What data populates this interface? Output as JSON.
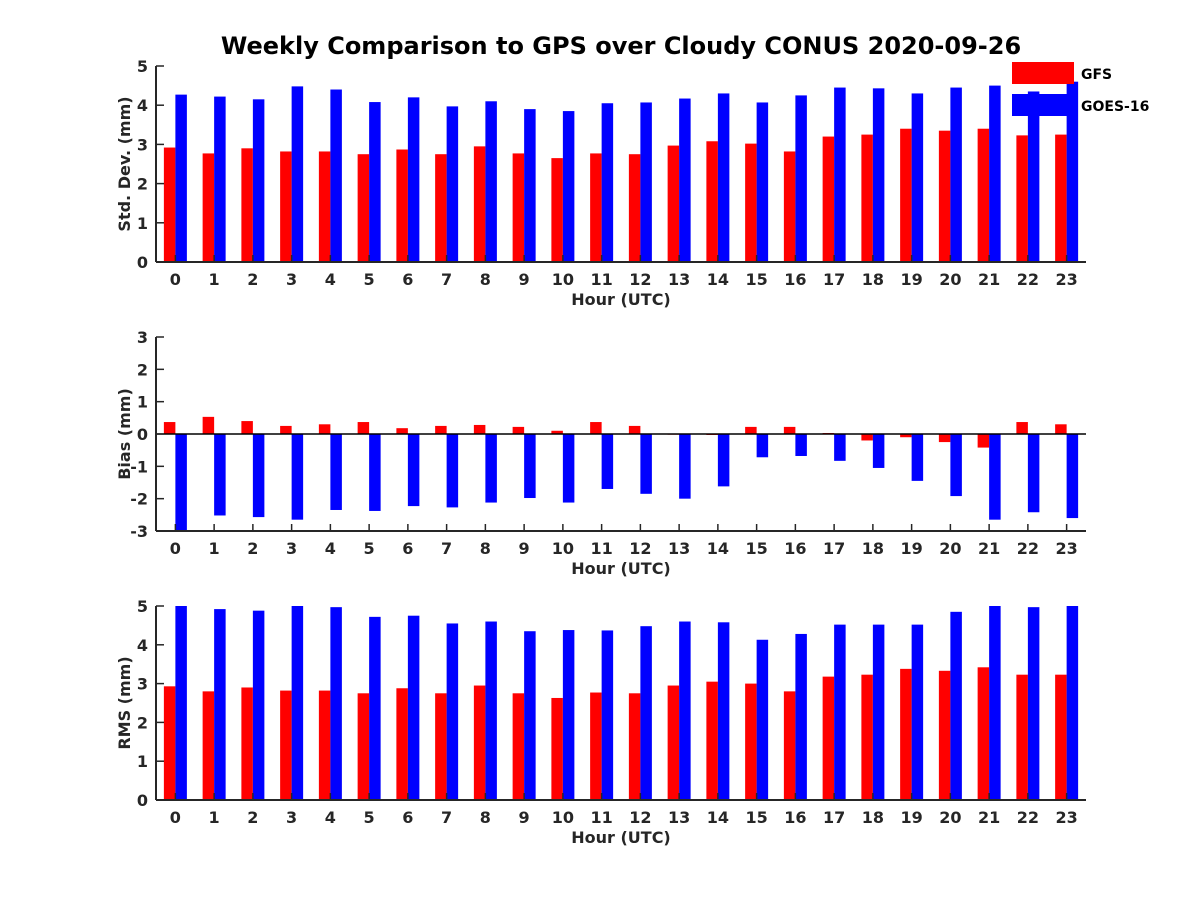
{
  "chart_data": {
    "type": "bar",
    "title": "Weekly Comparison to GPS over Cloudy CONUS 2020-09-26",
    "categories": [
      "0",
      "1",
      "2",
      "3",
      "4",
      "5",
      "6",
      "7",
      "8",
      "9",
      "10",
      "11",
      "12",
      "13",
      "14",
      "15",
      "16",
      "17",
      "18",
      "19",
      "20",
      "21",
      "22",
      "23"
    ],
    "legend": {
      "placement": "top-right",
      "entries": [
        {
          "name": "GFS",
          "color": "#ff0000"
        },
        {
          "name": "GOES-16",
          "color": "#0000ff"
        }
      ]
    },
    "panels": [
      {
        "ylabel": "Std. Dev. (mm)",
        "xlabel": "Hour (UTC)",
        "ylim": [
          0,
          5
        ],
        "yticks": [
          "0",
          "1",
          "2",
          "3",
          "4",
          "5"
        ],
        "series": [
          {
            "name": "GFS",
            "color": "#ff0000",
            "values": [
              2.92,
              2.77,
              2.9,
              2.82,
              2.82,
              2.75,
              2.87,
              2.75,
              2.95,
              2.77,
              2.65,
              2.77,
              2.75,
              2.97,
              3.08,
              3.02,
              2.82,
              3.2,
              3.25,
              3.4,
              3.35,
              3.4,
              3.23,
              3.25
            ]
          },
          {
            "name": "GOES-16",
            "color": "#0000ff",
            "values": [
              4.27,
              4.22,
              4.15,
              4.48,
              4.4,
              4.08,
              4.2,
              3.97,
              4.1,
              3.9,
              3.85,
              4.05,
              4.07,
              4.17,
              4.3,
              4.07,
              4.25,
              4.45,
              4.43,
              4.3,
              4.45,
              4.5,
              4.35,
              4.6
            ]
          }
        ]
      },
      {
        "ylabel": "Bias (mm)",
        "xlabel": "Hour (UTC)",
        "ylim": [
          -3,
          3
        ],
        "yticks": [
          "-3",
          "-2",
          "-1",
          "0",
          "1",
          "2",
          "3"
        ],
        "series": [
          {
            "name": "GFS",
            "color": "#ff0000",
            "values": [
              0.37,
              0.53,
              0.4,
              0.25,
              0.3,
              0.37,
              0.18,
              0.25,
              0.28,
              0.22,
              0.1,
              0.37,
              0.25,
              -0.02,
              -0.03,
              0.22,
              0.22,
              0.03,
              -0.2,
              -0.1,
              -0.25,
              -0.42,
              0.37,
              0.3
            ]
          },
          {
            "name": "GOES-16",
            "color": "#0000ff",
            "values": [
              -3.0,
              -2.52,
              -2.57,
              -2.65,
              -2.35,
              -2.38,
              -2.23,
              -2.27,
              -2.12,
              -1.98,
              -2.12,
              -1.7,
              -1.85,
              -2.0,
              -1.62,
              -0.72,
              -0.68,
              -0.83,
              -1.05,
              -1.45,
              -1.92,
              -2.65,
              -2.42,
              -2.6
            ]
          }
        ]
      },
      {
        "ylabel": "RMS (mm)",
        "xlabel": "Hour (UTC)",
        "ylim": [
          0,
          5
        ],
        "yticks": [
          "0",
          "1",
          "2",
          "3",
          "4",
          "5"
        ],
        "series": [
          {
            "name": "GFS",
            "color": "#ff0000",
            "values": [
              2.93,
              2.8,
              2.9,
              2.82,
              2.82,
              2.75,
              2.88,
              2.75,
              2.95,
              2.75,
              2.63,
              2.77,
              2.75,
              2.95,
              3.05,
              3.0,
              2.8,
              3.18,
              3.23,
              3.38,
              3.33,
              3.42,
              3.23,
              3.23
            ]
          },
          {
            "name": "GOES-16",
            "color": "#0000ff",
            "values": [
              5.0,
              4.92,
              4.88,
              5.0,
              4.97,
              4.72,
              4.75,
              4.55,
              4.6,
              4.35,
              4.38,
              4.37,
              4.48,
              4.6,
              4.58,
              4.13,
              4.28,
              4.52,
              4.52,
              4.52,
              4.85,
              5.0,
              4.97,
              5.0
            ]
          }
        ]
      }
    ]
  }
}
